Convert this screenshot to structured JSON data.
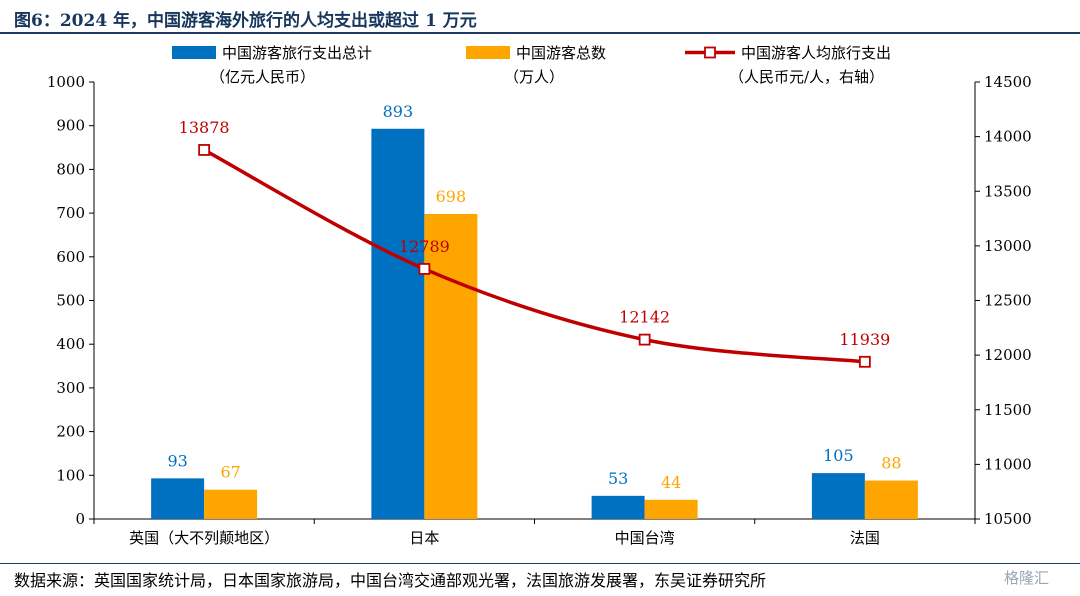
{
  "figure": {
    "title": "图6：2024 年，中国游客海外旅行的人均支出或超过 1 万元",
    "source": "数据来源：英国国家统计局，日本国家旅游局，中国台湾交通部观光署，法国旅游发展署，东吴证券研究所",
    "watermark": "格隆汇"
  },
  "colors": {
    "spend": "#0070c0",
    "tourists": "#ffa500",
    "per_capita": "#c00000",
    "title": "#17365d"
  },
  "chart_data": {
    "type": "bar",
    "categories": [
      "英国（大不列颠地区）",
      "日本",
      "中国台湾",
      "法国"
    ],
    "series": [
      {
        "name": "中国游客旅行支出总计\n（亿元人民币）",
        "type": "bar",
        "axis": "left",
        "values": [
          93,
          893,
          53,
          105
        ]
      },
      {
        "name": "中国游客总数\n（万人）",
        "type": "bar",
        "axis": "left",
        "values": [
          67,
          698,
          44,
          88
        ]
      },
      {
        "name": "中国游客人均旅行支出\n（人民币元/人，右轴）",
        "type": "line",
        "axis": "right",
        "values": [
          13878,
          12789,
          12142,
          11939
        ]
      }
    ],
    "y_left": {
      "min": 0,
      "max": 1000,
      "ticks": [
        0,
        100,
        200,
        300,
        400,
        500,
        600,
        700,
        800,
        900,
        1000
      ]
    },
    "y_right": {
      "min": 10500,
      "max": 14500,
      "ticks": [
        10500,
        11000,
        11500,
        12000,
        12500,
        13000,
        13500,
        14000,
        14500
      ]
    },
    "grid": false,
    "legend_position": "top"
  }
}
